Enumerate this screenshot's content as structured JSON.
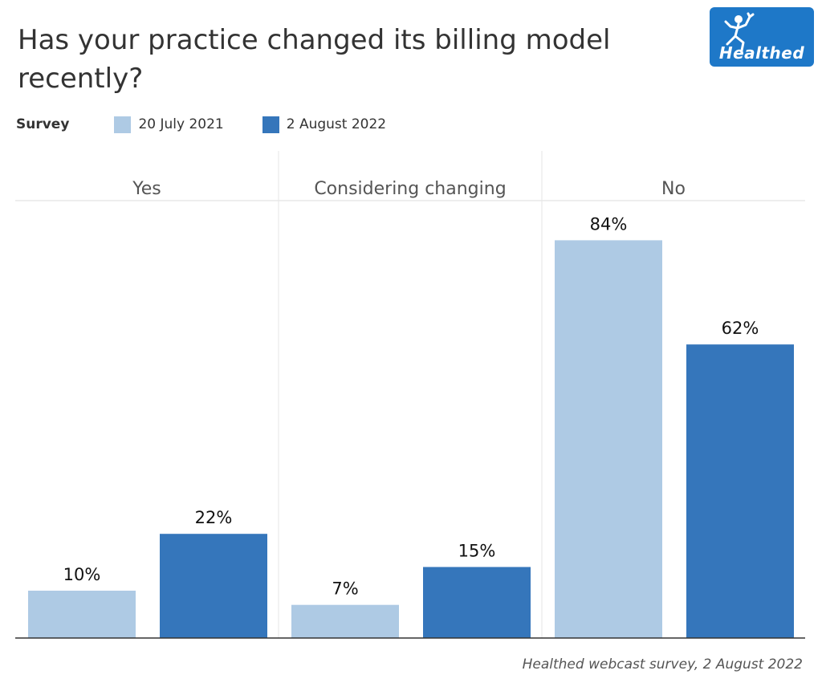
{
  "header": {
    "title": "Has your practice changed its billing model recently?",
    "logo_text": "Healthed",
    "logo_icon": "running-figure-icon"
  },
  "legend": {
    "title": "Survey",
    "items": [
      {
        "label": "20 July 2021",
        "color": "#aecae4"
      },
      {
        "label": "2 August 2022",
        "color": "#3576bb"
      }
    ]
  },
  "chart_data": {
    "type": "bar",
    "categories": [
      "Yes",
      "Considering changing",
      "No"
    ],
    "series": [
      {
        "name": "20 July 2021",
        "values": [
          10,
          7,
          84
        ],
        "color": "#aecae4"
      },
      {
        "name": "2 August 2022",
        "values": [
          22,
          15,
          62
        ],
        "color": "#3576bb"
      }
    ],
    "value_suffix": "%",
    "ylim": [
      0,
      100
    ],
    "title": "Has your practice changed its billing model recently?",
    "xlabel": "",
    "ylabel": "",
    "legend_title": "Survey",
    "legend_position": "top-left",
    "grid": false
  },
  "footer": {
    "source": "Healthed webcast survey, 2 August 2022"
  }
}
